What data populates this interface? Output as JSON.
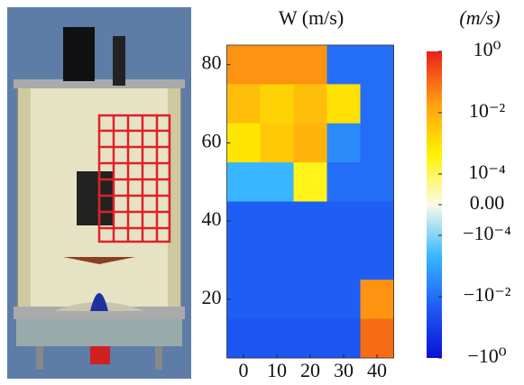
{
  "chart_data": {
    "type": "heatmap",
    "title": "W (m/s)",
    "colorbar_label": "(m/s)",
    "x": [
      0,
      10,
      20,
      30,
      40
    ],
    "y": [
      80,
      70,
      60,
      50,
      40,
      30,
      20,
      10
    ],
    "xlim": [
      -5,
      45
    ],
    "ylim": [
      5,
      85
    ],
    "xticks": [
      0,
      10,
      20,
      30,
      40
    ],
    "yticks": [
      20,
      40,
      60,
      80
    ],
    "values": [
      [
        0.03,
        0.03,
        0.03,
        -0.01,
        -0.01
      ],
      [
        0.005,
        0.002,
        0.005,
        0.001,
        -0.01
      ],
      [
        0.0008,
        0.003,
        0.008,
        -0.003,
        -0.01
      ],
      [
        -0.0005,
        -0.0005,
        0.0003,
        -0.01,
        -0.01
      ],
      [
        -0.02,
        -0.02,
        -0.02,
        -0.02,
        -0.02
      ],
      [
        -0.02,
        -0.02,
        -0.02,
        -0.02,
        -0.02
      ],
      [
        -0.02,
        -0.02,
        -0.02,
        -0.02,
        0.03
      ],
      [
        -0.03,
        -0.03,
        -0.03,
        -0.03,
        0.1
      ]
    ],
    "colorbar_ticks": [
      {
        "value": 1,
        "label": "10⁰"
      },
      {
        "value": 0.01,
        "label": "10⁻²"
      },
      {
        "value": 0.0001,
        "label": "10⁻⁴"
      },
      {
        "value": 0,
        "label": "0.00"
      },
      {
        "value": -0.0001,
        "label": "−10⁻⁴"
      },
      {
        "value": -0.01,
        "label": "−10⁻²"
      },
      {
        "value": -1,
        "label": "−10⁰"
      }
    ],
    "colormap": [
      "#0a10d8",
      "#1f5cf5",
      "#38b8ff",
      "#fbfbe8",
      "#fff200",
      "#ff9e10",
      "#e8201a"
    ]
  }
}
